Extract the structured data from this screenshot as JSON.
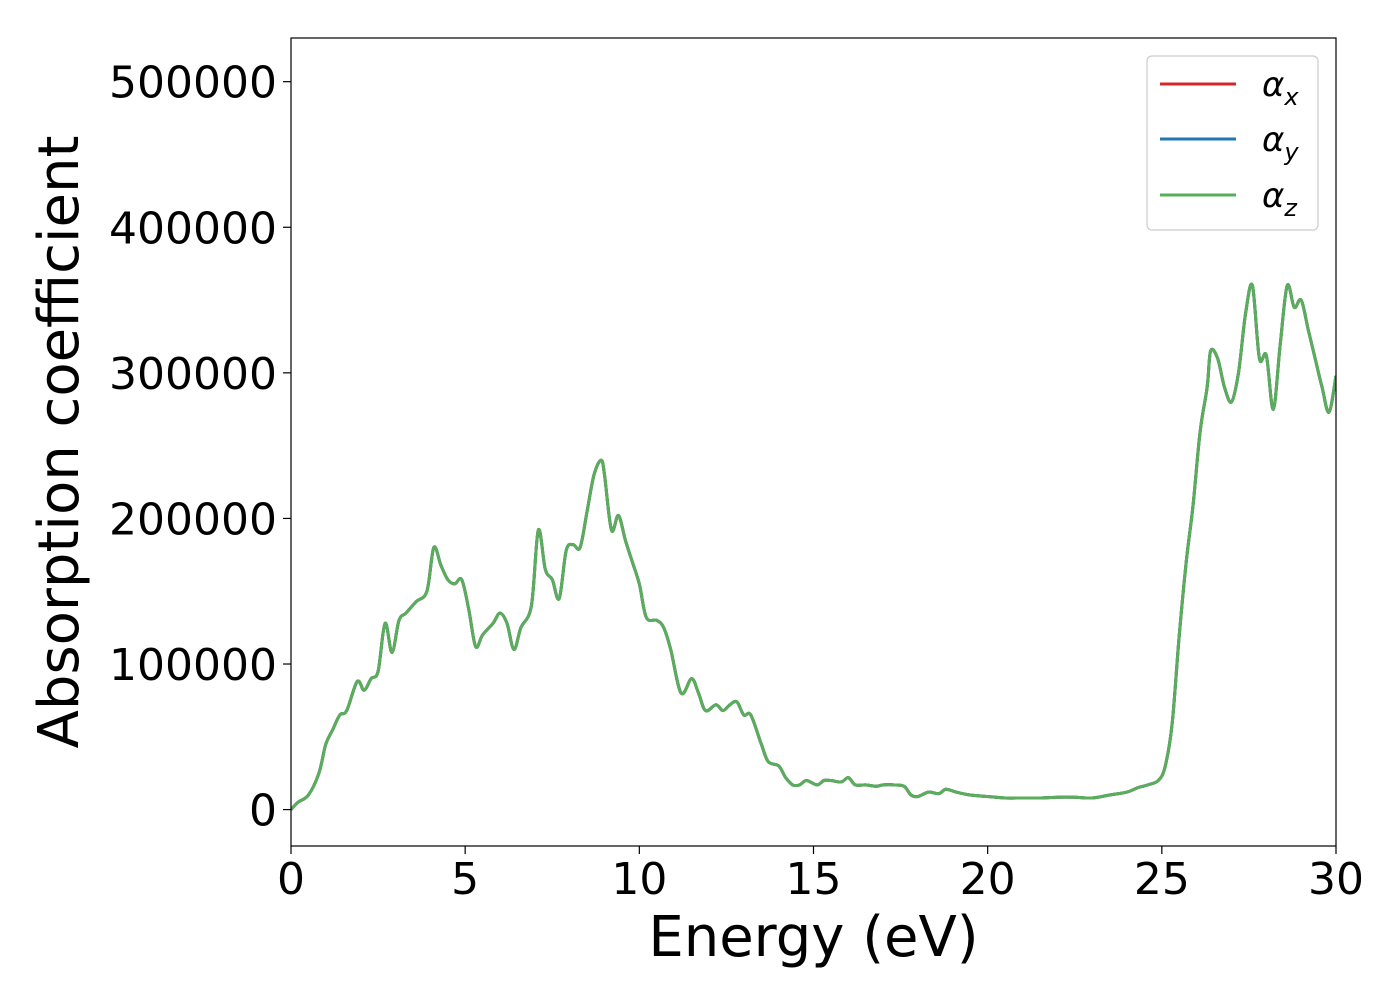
{
  "chart_data": {
    "type": "line",
    "title": "",
    "xlabel": "Energy (eV)",
    "ylabel": "Absorption coefficient",
    "xlim": [
      0,
      30
    ],
    "ylim": [
      -25000,
      530000
    ],
    "x_ticks": [
      0,
      5,
      10,
      15,
      20,
      25,
      30
    ],
    "x_tick_labels": [
      "0",
      "5",
      "10",
      "15",
      "20",
      "25",
      "30"
    ],
    "y_ticks": [
      0,
      100000,
      200000,
      300000,
      400000,
      500000
    ],
    "y_tick_labels": [
      "0",
      "100000",
      "200000",
      "300000",
      "400000",
      "500000"
    ],
    "grid": false,
    "legend_position": "top-right",
    "x": [
      0,
      0.2,
      0.5,
      0.8,
      1.0,
      1.2,
      1.4,
      1.6,
      1.9,
      2.1,
      2.3,
      2.5,
      2.7,
      2.9,
      3.1,
      3.3,
      3.6,
      3.9,
      4.1,
      4.3,
      4.5,
      4.7,
      4.9,
      5.1,
      5.3,
      5.5,
      5.8,
      6.0,
      6.2,
      6.4,
      6.6,
      6.9,
      7.1,
      7.3,
      7.5,
      7.7,
      7.9,
      8.1,
      8.3,
      8.5,
      8.7,
      8.9,
      9.0,
      9.2,
      9.4,
      9.6,
      9.8,
      10.0,
      10.2,
      10.5,
      10.7,
      10.9,
      11.2,
      11.5,
      11.7,
      11.9,
      12.2,
      12.4,
      12.6,
      12.8,
      13.0,
      13.2,
      13.5,
      13.7,
      14.0,
      14.2,
      14.4,
      14.6,
      14.8,
      15.1,
      15.3,
      15.5,
      15.8,
      16.0,
      16.2,
      16.5,
      16.8,
      17.0,
      17.3,
      17.6,
      17.8,
      18.0,
      18.3,
      18.6,
      18.8,
      19.1,
      19.5,
      20.0,
      20.5,
      21.0,
      21.5,
      22.0,
      22.5,
      23.0,
      23.5,
      24.0,
      24.3,
      24.6,
      24.9,
      25.1,
      25.3,
      25.5,
      25.7,
      25.9,
      26.1,
      26.3,
      26.4,
      26.6,
      26.8,
      27.0,
      27.2,
      27.4,
      27.6,
      27.8,
      28.0,
      28.2,
      28.4,
      28.6,
      28.8,
      29.0,
      29.2,
      29.4,
      29.6,
      29.8,
      30.0
    ],
    "series": [
      {
        "name": "αx",
        "name_base": "α",
        "name_sub": "x",
        "color": "#d62728",
        "y": [
          0,
          5000,
          10000,
          25000,
          45000,
          55000,
          65000,
          68000,
          88000,
          82000,
          90000,
          95000,
          128000,
          108000,
          130000,
          135000,
          143000,
          150000,
          180000,
          168000,
          158000,
          155000,
          158000,
          138000,
          112000,
          120000,
          128000,
          135000,
          128000,
          110000,
          125000,
          140000,
          192000,
          165000,
          158000,
          145000,
          178000,
          182000,
          180000,
          205000,
          230000,
          240000,
          230000,
          192000,
          202000,
          185000,
          170000,
          155000,
          132000,
          130000,
          125000,
          110000,
          80000,
          90000,
          80000,
          68000,
          72000,
          68000,
          72000,
          74000,
          65000,
          65000,
          45000,
          33000,
          30000,
          22000,
          17000,
          17000,
          20000,
          17000,
          20000,
          20000,
          19000,
          22000,
          17000,
          17000,
          16000,
          17000,
          17000,
          16000,
          10000,
          9000,
          12000,
          11000,
          14000,
          12000,
          10000,
          9000,
          8000,
          8000,
          8000,
          8500,
          8500,
          8000,
          10000,
          12000,
          15000,
          17000,
          20000,
          30000,
          60000,
          120000,
          170000,
          210000,
          260000,
          290000,
          315000,
          310000,
          290000,
          280000,
          300000,
          340000,
          360000,
          310000,
          312000,
          275000,
          320000,
          360000,
          345000,
          350000,
          330000,
          310000,
          290000,
          273000,
          298000
        ]
      },
      {
        "name": "αy",
        "name_base": "α",
        "name_sub": "y",
        "color": "#1f77b4",
        "y": [
          0,
          5000,
          10000,
          25000,
          45000,
          55000,
          65000,
          68000,
          88000,
          82000,
          90000,
          95000,
          128000,
          108000,
          130000,
          135000,
          143000,
          150000,
          180000,
          168000,
          158000,
          155000,
          158000,
          138000,
          112000,
          120000,
          128000,
          135000,
          128000,
          110000,
          125000,
          140000,
          192000,
          165000,
          158000,
          145000,
          178000,
          182000,
          180000,
          205000,
          230000,
          240000,
          230000,
          192000,
          202000,
          185000,
          170000,
          155000,
          132000,
          130000,
          125000,
          110000,
          80000,
          90000,
          80000,
          68000,
          72000,
          68000,
          72000,
          74000,
          65000,
          65000,
          45000,
          33000,
          30000,
          22000,
          17000,
          17000,
          20000,
          17000,
          20000,
          20000,
          19000,
          22000,
          17000,
          17000,
          16000,
          17000,
          17000,
          16000,
          10000,
          9000,
          12000,
          11000,
          14000,
          12000,
          10000,
          9000,
          8000,
          8000,
          8000,
          8500,
          8500,
          8000,
          10000,
          12000,
          15000,
          17000,
          20000,
          30000,
          60000,
          120000,
          170000,
          210000,
          260000,
          290000,
          315000,
          310000,
          290000,
          280000,
          300000,
          340000,
          360000,
          310000,
          312000,
          275000,
          320000,
          360000,
          345000,
          350000,
          330000,
          310000,
          290000,
          273000,
          298000
        ]
      },
      {
        "name": "αz",
        "name_base": "α",
        "name_sub": "z",
        "color": "#5aad5a",
        "y": [
          0,
          5000,
          10000,
          25000,
          45000,
          55000,
          65000,
          68000,
          88000,
          82000,
          90000,
          95000,
          128000,
          108000,
          130000,
          135000,
          143000,
          150000,
          180000,
          168000,
          158000,
          155000,
          158000,
          138000,
          112000,
          120000,
          128000,
          135000,
          128000,
          110000,
          125000,
          140000,
          192000,
          165000,
          158000,
          145000,
          178000,
          182000,
          180000,
          205000,
          230000,
          240000,
          230000,
          192000,
          202000,
          185000,
          170000,
          155000,
          132000,
          130000,
          125000,
          110000,
          80000,
          90000,
          80000,
          68000,
          72000,
          68000,
          72000,
          74000,
          65000,
          65000,
          45000,
          33000,
          30000,
          22000,
          17000,
          17000,
          20000,
          17000,
          20000,
          20000,
          19000,
          22000,
          17000,
          17000,
          16000,
          17000,
          17000,
          16000,
          10000,
          9000,
          12000,
          11000,
          14000,
          12000,
          10000,
          9000,
          8000,
          8000,
          8000,
          8500,
          8500,
          8000,
          10000,
          12000,
          15000,
          17000,
          20000,
          30000,
          60000,
          120000,
          170000,
          210000,
          260000,
          290000,
          315000,
          310000,
          290000,
          280000,
          300000,
          340000,
          360000,
          310000,
          312000,
          275000,
          320000,
          360000,
          345000,
          350000,
          330000,
          310000,
          290000,
          273000,
          298000
        ]
      }
    ]
  }
}
